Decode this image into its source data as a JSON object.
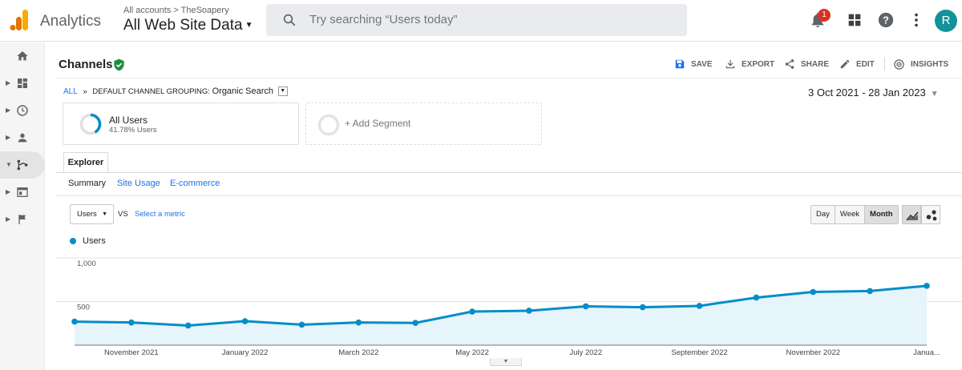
{
  "app": {
    "brand": "Analytics",
    "account_path": "All accounts > TheSoapery",
    "property_view": "All Web Site Data",
    "search_placeholder": "Try searching “Users today”",
    "notification_count": "1",
    "avatar_initial": "R",
    "icons": [
      "analytics-logo",
      "search-icon",
      "bell-icon",
      "apps-grid-icon",
      "help-icon",
      "more-vert-icon"
    ]
  },
  "sidebar": {
    "items": [
      {
        "name": "home",
        "icon": "home-icon",
        "active": false
      },
      {
        "name": "customization",
        "icon": "dashboard-icon",
        "active": false
      },
      {
        "name": "realtime",
        "icon": "clock-icon",
        "active": false
      },
      {
        "name": "audience",
        "icon": "person-icon",
        "active": false
      },
      {
        "name": "acquisition",
        "icon": "acquisition-icon",
        "active": true
      },
      {
        "name": "behavior",
        "icon": "behavior-icon",
        "active": false
      },
      {
        "name": "conversions",
        "icon": "flag-icon",
        "active": false
      }
    ]
  },
  "report": {
    "title": "Channels",
    "actions": {
      "save": "SAVE",
      "export": "EXPORT",
      "share": "SHARE",
      "edit": "EDIT",
      "insights": "INSIGHTS"
    },
    "breadcrumb": {
      "all": "ALL",
      "separator": "»",
      "grouping_label": "DEFAULT CHANNEL GROUPING:",
      "grouping_value": "Organic Search"
    },
    "date_range": "3 Oct 2021 - 28 Jan 2023"
  },
  "segments": {
    "active": {
      "name": "All Users",
      "percent_text": "41.78% Users",
      "share": 0.4178
    },
    "add_label": "+ Add Segment"
  },
  "tabs": {
    "main": "Explorer",
    "sub": [
      "Summary",
      "Site Usage",
      "E-commerce"
    ]
  },
  "chart_controls": {
    "metric": "Users",
    "vs": "VS",
    "select_metric": "Select a metric",
    "granularity": [
      "Day",
      "Week",
      "Month"
    ],
    "active_granularity": "Month"
  },
  "colors": {
    "series": "#058dc7",
    "fill": "#e6f4fb",
    "link": "#1a73e8",
    "accent_green": "#1e8e3e"
  },
  "chart_data": {
    "type": "area",
    "series": [
      {
        "name": "Users",
        "values": [
          270,
          260,
          225,
          275,
          235,
          260,
          255,
          385,
          395,
          445,
          435,
          450,
          545,
          610,
          620,
          680
        ]
      }
    ],
    "x": [
      "Oct 2021",
      "Nov 2021",
      "Dec 2021",
      "Jan 2022",
      "Feb 2022",
      "Mar 2022",
      "Apr 2022",
      "May 2022",
      "Jun 2022",
      "Jul 2022",
      "Aug 2022",
      "Sep 2022",
      "Oct 2022",
      "Nov 2022",
      "Dec 2022",
      "Jan 2023"
    ],
    "x_tick_labels": [
      {
        "at": "Nov 2021",
        "label": "November 2021"
      },
      {
        "at": "Jan 2022",
        "label": "January 2022"
      },
      {
        "at": "Mar 2022",
        "label": "March 2022"
      },
      {
        "at": "May 2022",
        "label": "May 2022"
      },
      {
        "at": "Jul 2022",
        "label": "July 2022"
      },
      {
        "at": "Sep 2022",
        "label": "September 2022"
      },
      {
        "at": "Nov 2022",
        "label": "November 2022"
      },
      {
        "at": "Jan 2023",
        "label": "Janua..."
      }
    ],
    "y_ticks": [
      "1,000",
      "500"
    ],
    "y_tick_values": [
      1000,
      500
    ],
    "ylim": [
      0,
      1000
    ],
    "legend": "top-left",
    "grid": true
  }
}
